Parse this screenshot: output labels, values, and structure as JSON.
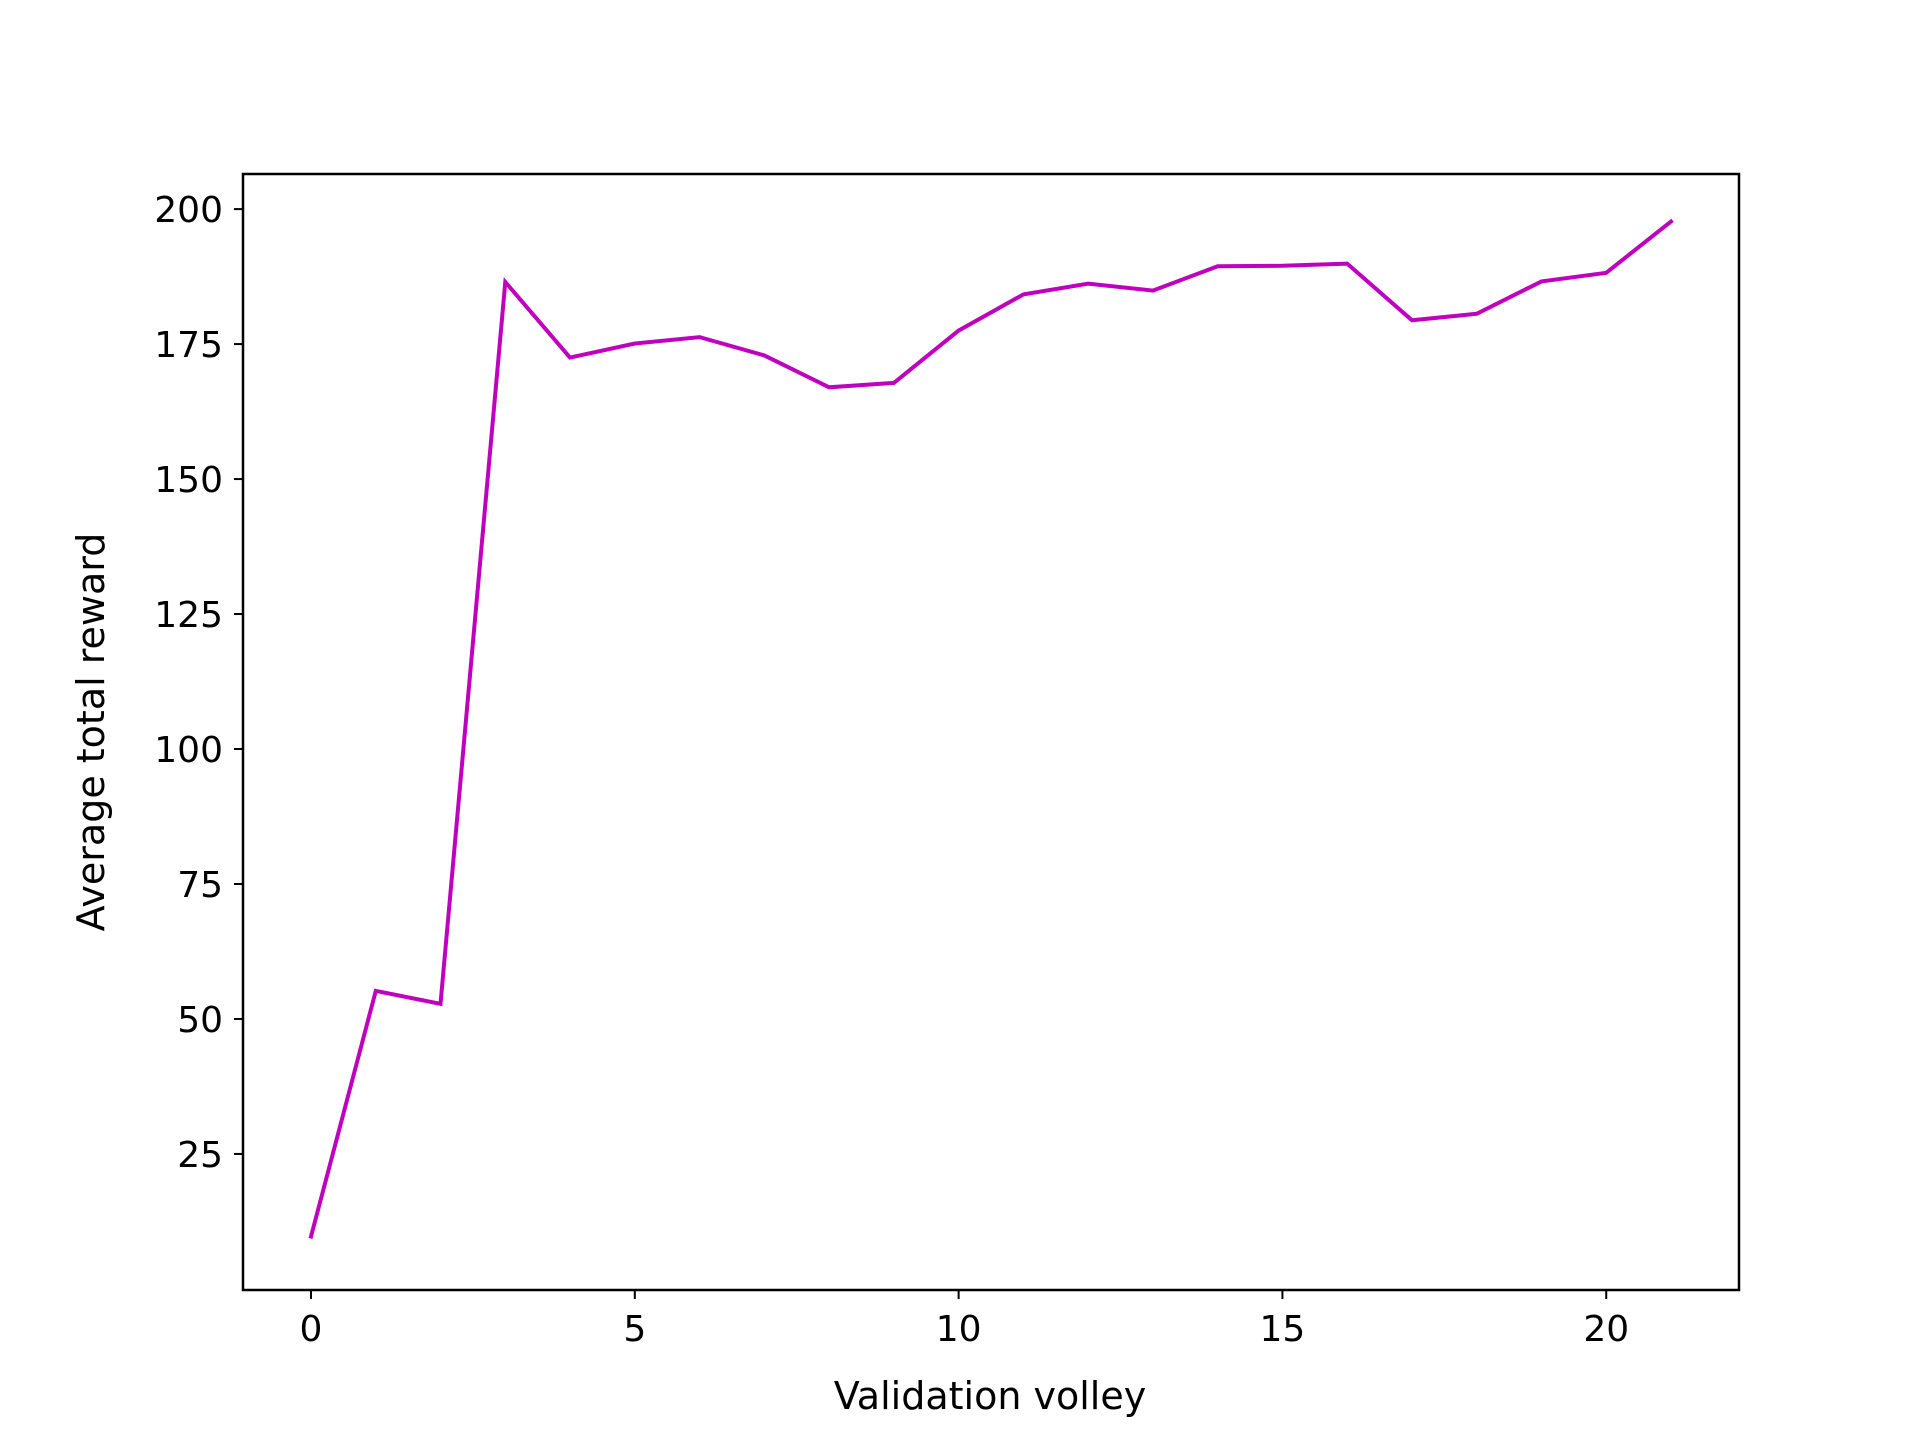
{
  "chart_data": {
    "type": "line",
    "title": "",
    "xlabel": "Validation volley",
    "ylabel": "Average total reward",
    "xlim": [
      -1.05,
      22.05
    ],
    "ylim": [
      -0.2,
      206.5
    ],
    "x_ticks": [
      0,
      5,
      10,
      15,
      20
    ],
    "y_ticks": [
      25,
      50,
      75,
      100,
      125,
      150,
      175,
      200
    ],
    "grid": false,
    "legend": "none",
    "series": [
      {
        "color": "#bf00bf",
        "x": [
          0,
          1,
          2,
          3,
          4,
          5,
          6,
          7,
          8,
          9,
          10,
          11,
          12,
          13,
          14,
          15,
          16,
          17,
          18,
          19,
          20,
          21
        ],
        "y": [
          9.7,
          55.2,
          52.8,
          186.5,
          172.5,
          175.1,
          176.3,
          172.9,
          167.0,
          167.8,
          177.5,
          184.2,
          186.2,
          184.9,
          189.4,
          189.5,
          189.9,
          179.4,
          180.6,
          186.6,
          188.2,
          197.7
        ]
      }
    ]
  }
}
